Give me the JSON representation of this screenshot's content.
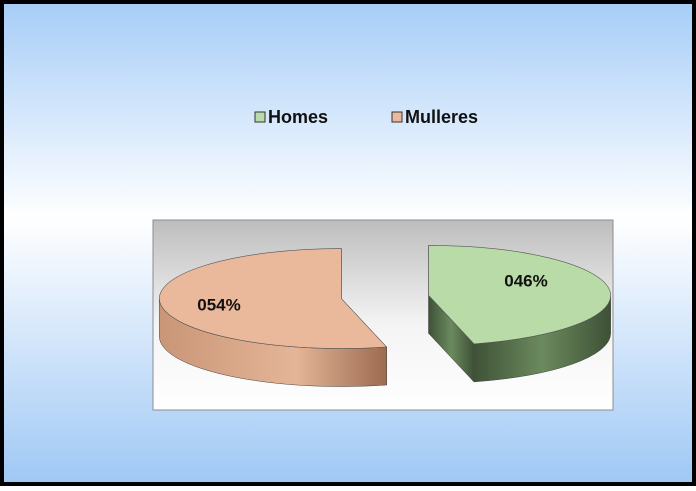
{
  "chart_data": {
    "type": "pie",
    "categories": [
      "Homes",
      "Mulleres"
    ],
    "values": [
      46,
      54
    ],
    "value_labels": [
      "046%",
      "054%"
    ],
    "colors": [
      "#b8dba8",
      "#eab99c"
    ],
    "legend": "top"
  }
}
